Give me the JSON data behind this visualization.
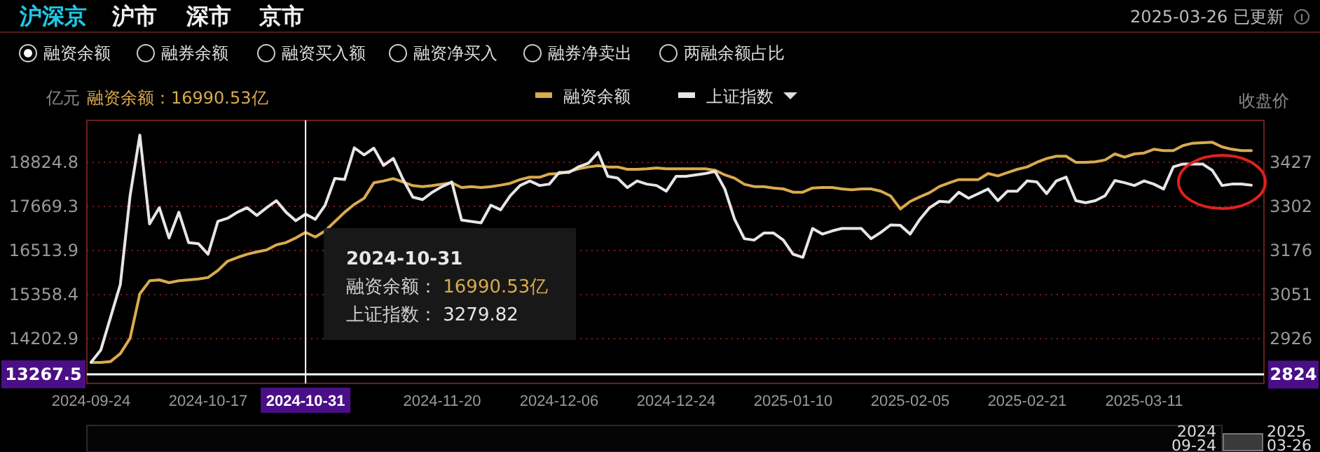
{
  "chart_data": {
    "type": "line",
    "subtitle": "融资余额：16990.53亿",
    "ylabel": "亿元",
    "y2label": "收盘价",
    "categories": [
      "2024-09-24",
      null,
      null,
      null,
      null,
      null,
      null,
      null,
      null,
      null,
      null,
      null,
      "2024-10-17",
      null,
      null,
      null,
      null,
      null,
      null,
      null,
      null,
      null,
      "2024-10-31",
      null,
      null,
      null,
      null,
      null,
      null,
      null,
      null,
      null,
      null,
      null,
      null,
      null,
      "2024-11-20",
      null,
      null,
      null,
      null,
      null,
      null,
      null,
      null,
      null,
      null,
      null,
      "2024-12-06",
      null,
      null,
      null,
      null,
      null,
      null,
      null,
      null,
      null,
      null,
      null,
      "2024-12-24",
      null,
      null,
      null,
      null,
      null,
      null,
      null,
      null,
      null,
      null,
      null,
      "2025-01-10",
      null,
      null,
      null,
      null,
      null,
      null,
      null,
      null,
      null,
      null,
      null,
      "2025-02-05",
      null,
      null,
      null,
      null,
      null,
      null,
      null,
      null,
      null,
      null,
      null,
      "2025-02-21",
      null,
      null,
      null,
      null,
      null,
      null,
      null,
      null,
      null,
      null,
      null,
      "2025-03-11",
      null,
      null,
      null,
      null,
      null,
      null,
      null,
      null,
      null,
      null,
      null
    ],
    "series": [
      {
        "name": "融资余额",
        "color": "#d9aa4e",
        "values": [
          13579,
          13579,
          13604,
          13811,
          14215,
          15377,
          15719,
          15744,
          15670,
          15719,
          15744,
          15768,
          15805,
          15988,
          16233,
          16330,
          16416,
          16477,
          16526,
          16661,
          16722,
          16844,
          16990.53,
          16868,
          17027,
          17271,
          17516,
          17724,
          17883,
          18287,
          18336,
          18397,
          18311,
          18213,
          18189,
          18213,
          18250,
          18287,
          18164,
          18189,
          18164,
          18189,
          18226,
          18275,
          18372,
          18434,
          18434,
          18519,
          18531,
          18580,
          18654,
          18703,
          18739,
          18703,
          18703,
          18641,
          18641,
          18654,
          18678,
          18654,
          18654,
          18654,
          18654,
          18654,
          18617,
          18495,
          18409,
          18250,
          18189,
          18189,
          18152,
          18128,
          18042,
          18042,
          18152,
          18164,
          18164,
          18128,
          18103,
          18128,
          18128,
          18067,
          17945,
          17602,
          17798,
          17920,
          18030,
          18189,
          18287,
          18372,
          18372,
          18372,
          18531,
          18470,
          18556,
          18641,
          18703,
          18825,
          18923,
          18984,
          18984,
          18825,
          18825,
          18837,
          18886,
          19045,
          18959,
          19045,
          19069,
          19167,
          19130,
          19130,
          19265,
          19326,
          19338,
          19350,
          19228,
          19167,
          19130,
          19130
        ]
      },
      {
        "name": "上证指数",
        "color": "#e6e6e6",
        "axis": "y2",
        "values": [
          2859,
          2894,
          2987,
          3080,
          3332,
          3504,
          3252,
          3298,
          3212,
          3285,
          3199,
          3196,
          3166,
          3259,
          3268,
          3285,
          3298,
          3276,
          3298,
          3318,
          3285,
          3261,
          3279.82,
          3265,
          3305,
          3381,
          3378,
          3468,
          3448,
          3467,
          3418,
          3438,
          3378,
          3328,
          3321,
          3342,
          3358,
          3371,
          3263,
          3259,
          3255,
          3305,
          3292,
          3332,
          3361,
          3374,
          3361,
          3365,
          3398,
          3398,
          3414,
          3424,
          3455,
          3387,
          3382,
          3355,
          3374,
          3365,
          3361,
          3345,
          3387,
          3387,
          3391,
          3395,
          3401,
          3351,
          3265,
          3210,
          3206,
          3226,
          3226,
          3206,
          3166,
          3157,
          3239,
          3223,
          3232,
          3239,
          3239,
          3239,
          3210,
          3228,
          3249,
          3248,
          3223,
          3265,
          3298,
          3316,
          3314,
          3342,
          3325,
          3338,
          3351,
          3318,
          3345,
          3345,
          3374,
          3371,
          3338,
          3374,
          3385,
          3318,
          3312,
          3318,
          3332,
          3375,
          3369,
          3361,
          3374,
          3365,
          3351,
          3414,
          3422,
          3422,
          3422,
          3404,
          3361,
          3365,
          3365,
          3362
        ]
      }
    ],
    "ylim": [
      13029,
      19925
    ],
    "yticks": [
      14202.9,
      15358.4,
      16513.9,
      17669.3,
      18824.8
    ],
    "y2lim": [
      2799,
      3546
    ],
    "y2ticks": [
      2824,
      2926,
      3051,
      3176,
      3302,
      3427
    ],
    "ref_lines": [
      {
        "axis": "x",
        "value": "2024-10-31",
        "color": "#ffffff"
      },
      {
        "axis": "y",
        "value": 13267.5,
        "label": "13267.5",
        "color": "#ffffff"
      }
    ],
    "grid": "y",
    "legend": "top",
    "annotations": [
      "沪深京",
      "沪市",
      "深市",
      "京市",
      "2025-03-26 已更新",
      "融资余额",
      "融券余额",
      "融资买入额",
      "融资净买入",
      "融券净卖出",
      "两融余额占比",
      "2024-10-31",
      "融资余额： 16990.53亿",
      "上证指数： 3279.82",
      "2024 09-24",
      "2025 03-26"
    ]
  }
}
